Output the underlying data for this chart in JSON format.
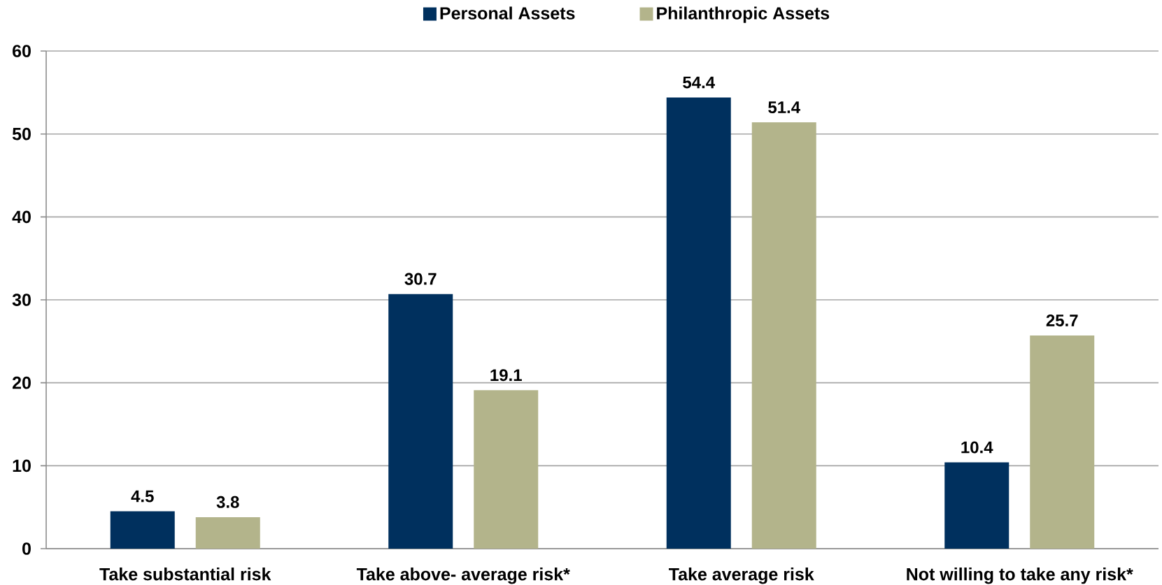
{
  "chart_data": {
    "type": "bar",
    "categories": [
      "Take substantial risk",
      "Take above- average risk*",
      "Take average risk",
      "Not willing to take any risk*"
    ],
    "series": [
      {
        "name": "Personal Assets",
        "color": "#00305e",
        "values": [
          4.5,
          30.7,
          54.4,
          10.4
        ]
      },
      {
        "name": "Philanthropic Assets",
        "color": "#b3b48b",
        "values": [
          3.8,
          19.1,
          51.4,
          25.7
        ]
      }
    ],
    "ylim": [
      0,
      60
    ],
    "yticks": [
      0,
      10,
      20,
      30,
      40,
      50,
      60
    ],
    "grid": "y",
    "legend": "top",
    "data_labels": true
  }
}
